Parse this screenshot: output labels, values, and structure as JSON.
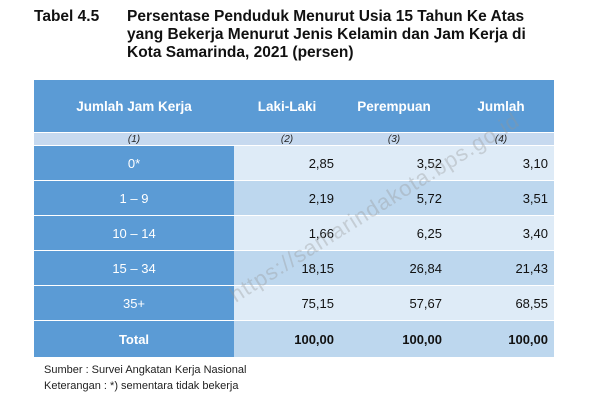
{
  "caption": {
    "number": "Tabel 4.5",
    "lines": [
      "Persentase Penduduk Menurut Usia 15 Tahun Ke Atas",
      "yang Bekerja Menurut Jenis Kelamin dan Jam Kerja di",
      "Kota Samarinda, 2021 (persen)"
    ]
  },
  "table": {
    "headers": [
      "Jumlah Jam Kerja",
      "Laki-Laki",
      "Perempuan",
      "Jumlah"
    ],
    "col_index": [
      "(1)",
      "(2)",
      "(3)",
      "(4)"
    ],
    "rows": [
      {
        "label": "0*",
        "values": [
          "2,85",
          "3,52",
          "3,10"
        ]
      },
      {
        "label": "1 – 9",
        "values": [
          "2,19",
          "5,72",
          "3,51"
        ]
      },
      {
        "label": "10 – 14",
        "values": [
          "1,66",
          "6,25",
          "3,40"
        ]
      },
      {
        "label": "15 – 34",
        "values": [
          "18,15",
          "26,84",
          "21,43"
        ]
      },
      {
        "label": "35+",
        "values": [
          "75,15",
          "57,67",
          "68,55"
        ]
      }
    ],
    "total": {
      "label": "Total",
      "values": [
        "100,00",
        "100,00",
        "100,00"
      ]
    }
  },
  "notes": {
    "source": "Sumber : Survei Angkatan Kerja Nasional",
    "remark": "Keterangan : *) sementara tidak bekerja"
  },
  "watermark": "https://samarindakota.bps.go.id",
  "colors": {
    "header": "#5b9bd5",
    "row_light": "#deebf7",
    "row_dark": "#bdd7ee"
  }
}
